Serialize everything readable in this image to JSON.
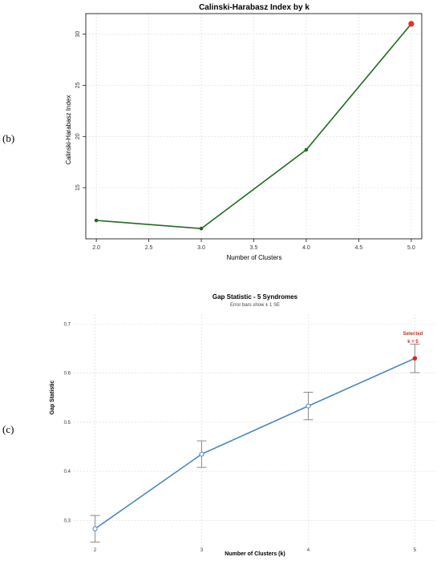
{
  "panel_labels": {
    "b": "(b)",
    "c": "(c)"
  },
  "colors": {
    "ch_line": "#1f6b1f",
    "ch_highlight": "#e8321e",
    "gap_line": "#4a86c0",
    "gap_point_fill": "#ffffff",
    "gap_highlight": "#d42a1a",
    "error_bar": "#8a8a8a",
    "grid": "#d9d9d9",
    "axis_text": "#333333"
  },
  "chart_data": [
    {
      "type": "line",
      "title": "Calinski-Harabasz Index by k",
      "xlabel": "Number of Clusters",
      "ylabel": "Calinski-Harabasz Index",
      "x": [
        2.0,
        3.0,
        4.0,
        5.0
      ],
      "series": [
        {
          "values": [
            11.8,
            11.0,
            18.7,
            31.0
          ]
        }
      ],
      "highlight_index": 3,
      "xlim": [
        1.9,
        5.1
      ],
      "ylim": [
        10.0,
        32.0
      ],
      "xticks": [
        2.0,
        2.5,
        3.0,
        3.5,
        4.0,
        4.5,
        5.0
      ],
      "xtick_labels": [
        "2.0",
        "2.5",
        "3.0",
        "3.5",
        "4.0",
        "4.5",
        "5.0"
      ],
      "yticks": [
        15,
        20,
        25,
        30
      ],
      "ytick_labels": [
        "15",
        "20",
        "25",
        "30"
      ],
      "grid": true,
      "frame": "box"
    },
    {
      "type": "line",
      "title": "Gap Statistic - 5 Syndromes",
      "subtitle": "Error bars show ± 1 SE",
      "xlabel": "Number of Clusters (k)",
      "ylabel": "Gap Statistic",
      "x": [
        2,
        3,
        4,
        5
      ],
      "series": [
        {
          "values": [
            0.283,
            0.435,
            0.533,
            0.63
          ],
          "error": [
            0.027,
            0.027,
            0.028,
            0.029
          ]
        }
      ],
      "highlight_index": 3,
      "annotation": {
        "line1": "Selected",
        "line2": "k = 5"
      },
      "xlim": [
        1.8,
        5.2
      ],
      "ylim": [
        0.25,
        0.72
      ],
      "xticks": [
        2,
        3,
        4,
        5
      ],
      "xtick_labels": [
        "2",
        "3",
        "4",
        "5"
      ],
      "yticks": [
        0.3,
        0.4,
        0.5,
        0.6,
        0.7
      ],
      "ytick_labels": [
        "0.3",
        "0.4",
        "0.5",
        "0.6",
        "0.7"
      ],
      "grid": true,
      "frame": "none"
    }
  ]
}
